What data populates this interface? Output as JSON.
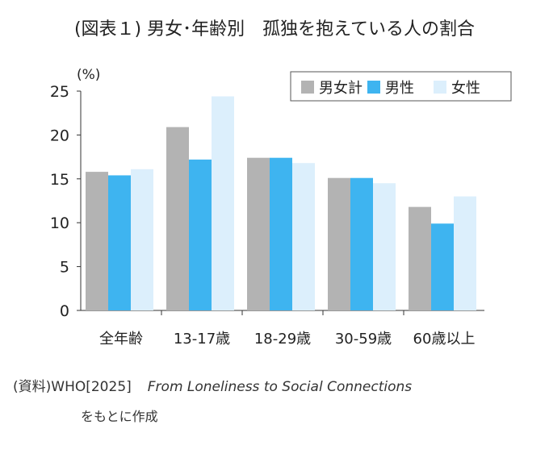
{
  "source": {
    "prefix": "(資料)WHO[2025]",
    "title": "From Loneliness to Social Connections",
    "line2": "をもとに作成"
  },
  "colors": {
    "total": "#b3b3b3",
    "male": "#3eb4f0",
    "female": "#dceffc"
  },
  "chart_data": {
    "type": "bar",
    "title": "(図表１) 男女･年齢別　孤独を抱えている人の割合",
    "ylabel": "(%)",
    "xlabel": "",
    "ylim": [
      0,
      25
    ],
    "yticks": [
      0,
      5,
      10,
      15,
      20,
      25
    ],
    "grid": false,
    "legend": "top-right",
    "categories": [
      "全年齢",
      "13-17歳",
      "18-29歳",
      "30-59歳",
      "60歳以上"
    ],
    "series": [
      {
        "name": "男女計",
        "values": [
          15.8,
          20.9,
          17.4,
          15.1,
          11.8
        ]
      },
      {
        "name": "男性",
        "values": [
          15.4,
          17.2,
          17.4,
          15.1,
          9.9
        ]
      },
      {
        "name": "女性",
        "values": [
          16.1,
          24.4,
          16.8,
          14.5,
          13.0
        ]
      }
    ]
  }
}
